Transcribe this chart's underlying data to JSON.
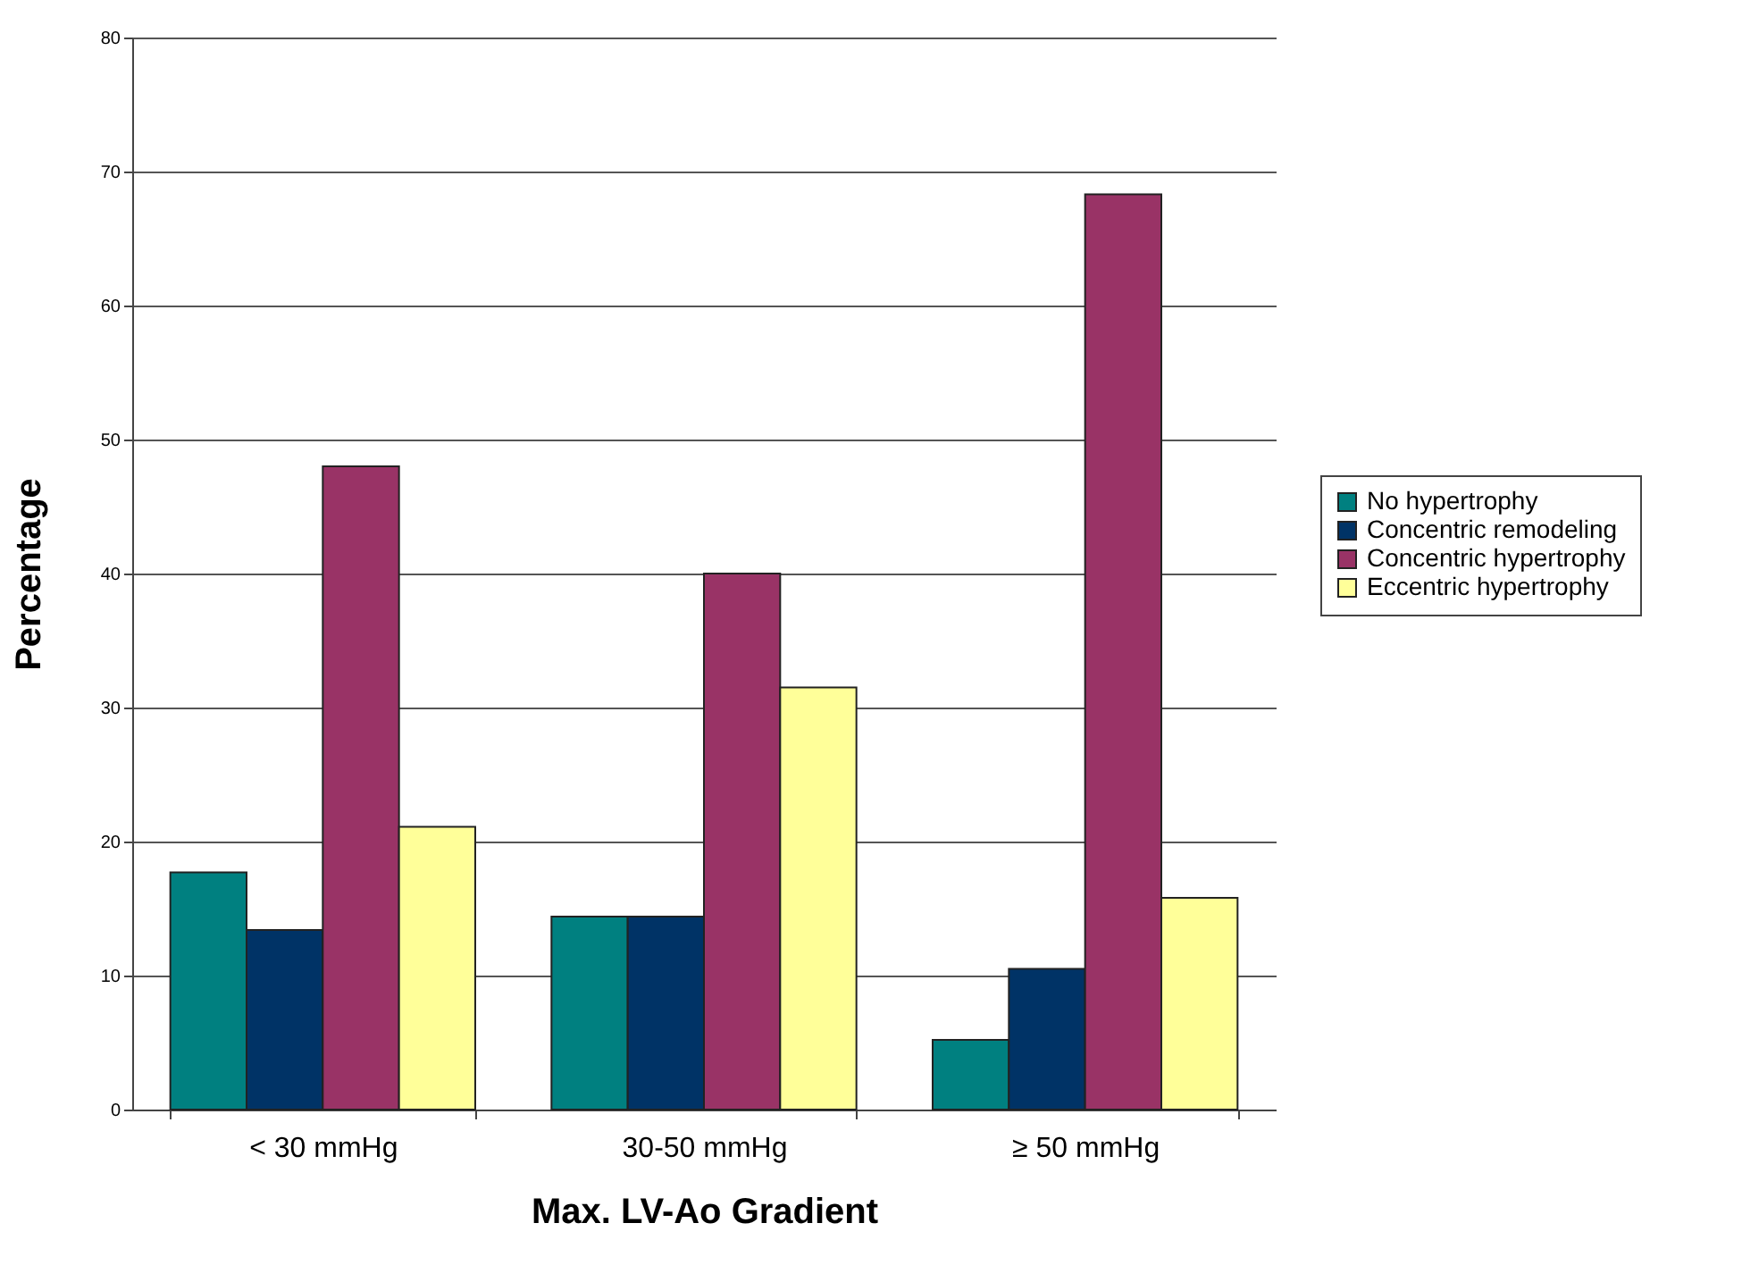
{
  "chart_data": {
    "type": "bar",
    "xlabel": "Max. LV-Ao Gradient",
    "ylabel": "Percentage",
    "categories": [
      "< 30 mmHg",
      "30-50 mmHg",
      "≥ 50 mmHg"
    ],
    "series": [
      {
        "name": "No hypertrophy",
        "color": "#008080",
        "values": [
          17.7,
          14.4,
          5.2
        ]
      },
      {
        "name": "Concentric remodeling",
        "color": "#003366",
        "values": [
          13.4,
          14.4,
          10.5
        ]
      },
      {
        "name": "Concentric hypertrophy",
        "color": "#993366",
        "values": [
          48.0,
          40.0,
          68.3
        ]
      },
      {
        "name": "Eccentric hypertrophy",
        "color": "#ffff99",
        "values": [
          21.1,
          31.5,
          15.8
        ]
      }
    ],
    "ylim": [
      0,
      80
    ],
    "yticks": [
      0,
      10,
      20,
      30,
      40,
      50,
      60,
      70,
      80
    ],
    "grid": "y",
    "legend": "right"
  }
}
